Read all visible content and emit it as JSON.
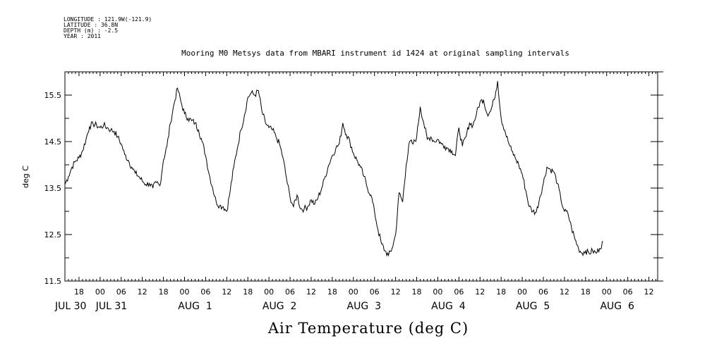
{
  "header": {
    "longitude": "LONGITUDE : 121.9W(-121.9)",
    "latitude": "LATITUDE : 36.8N",
    "depth": "DEPTH (m) : -2.5",
    "year": "YEAR : 2011"
  },
  "chart_data": {
    "type": "line",
    "title": "Mooring M0 Metsys data from MBARI instrument id 1424 at original sampling intervals",
    "xlabel": "Air Temperature (deg C)",
    "ylabel": "deg C",
    "ylim": [
      11.5,
      16.0
    ],
    "yticks": [
      "11.5",
      "12.5",
      "13.5",
      "14.5",
      "15.5"
    ],
    "xlim_hours_from_jul30_00": [
      14,
      182.5
    ],
    "hour_ticks": [
      "18",
      "00",
      "06",
      "12",
      "18",
      "00",
      "06",
      "12",
      "18",
      "00",
      "06",
      "12",
      "18",
      "00",
      "06",
      "12",
      "18",
      "00",
      "06",
      "12",
      "18",
      "00",
      "06",
      "12",
      "18",
      "00",
      "06",
      "12",
      "18",
      "00",
      "06",
      "12",
      "18",
      "00",
      "06",
      "12"
    ],
    "date_labels": [
      "JUL 30",
      "JUL 31",
      "AUG  1",
      "AUG  2",
      "AUG  3",
      "AUG  4",
      "AUG  5",
      "AUG  6"
    ],
    "series": [
      {
        "points": [
          [
            14,
            13.58
          ],
          [
            15,
            13.75
          ],
          [
            16,
            13.95
          ],
          [
            17,
            14.08
          ],
          [
            18,
            14.15
          ],
          [
            19,
            14.3
          ],
          [
            20,
            14.55
          ],
          [
            21,
            14.82
          ],
          [
            22,
            14.88
          ],
          [
            23,
            14.85
          ],
          [
            24,
            14.8
          ],
          [
            25,
            14.85
          ],
          [
            26,
            14.8
          ],
          [
            27,
            14.75
          ],
          [
            28,
            14.72
          ],
          [
            29,
            14.6
          ],
          [
            30,
            14.45
          ],
          [
            31,
            14.22
          ],
          [
            32,
            14.1
          ],
          [
            33,
            13.95
          ],
          [
            34,
            13.82
          ],
          [
            35,
            13.75
          ],
          [
            36,
            13.65
          ],
          [
            37,
            13.58
          ],
          [
            38,
            13.6
          ],
          [
            39,
            13.5
          ],
          [
            40,
            13.62
          ],
          [
            41,
            13.55
          ],
          [
            42,
            14.1
          ],
          [
            43,
            14.4
          ],
          [
            44,
            14.9
          ],
          [
            45,
            15.3
          ],
          [
            46,
            15.65
          ],
          [
            47,
            15.35
          ],
          [
            48,
            15.1
          ],
          [
            49,
            15.0
          ],
          [
            50,
            14.95
          ],
          [
            51,
            14.9
          ],
          [
            52,
            14.75
          ],
          [
            53,
            14.5
          ],
          [
            54,
            14.2
          ],
          [
            55,
            13.8
          ],
          [
            56,
            13.5
          ],
          [
            57,
            13.2
          ],
          [
            58,
            13.12
          ],
          [
            59,
            13.1
          ],
          [
            60,
            13.0
          ],
          [
            61,
            13.45
          ],
          [
            62,
            13.95
          ],
          [
            63,
            14.35
          ],
          [
            64,
            14.75
          ],
          [
            65,
            15.05
          ],
          [
            66,
            15.45
          ],
          [
            67,
            15.55
          ],
          [
            68,
            15.5
          ],
          [
            69,
            15.6
          ],
          [
            70,
            15.15
          ],
          [
            71,
            14.9
          ],
          [
            72,
            14.8
          ],
          [
            73,
            14.75
          ],
          [
            74,
            14.6
          ],
          [
            75,
            14.45
          ],
          [
            76,
            14.15
          ],
          [
            77,
            13.7
          ],
          [
            78,
            13.3
          ],
          [
            79,
            13.1
          ],
          [
            80,
            13.35
          ],
          [
            81,
            13.05
          ],
          [
            82,
            13.05
          ],
          [
            83,
            13.1
          ],
          [
            84,
            13.25
          ],
          [
            85,
            13.15
          ],
          [
            86,
            13.3
          ],
          [
            87,
            13.5
          ],
          [
            88,
            13.75
          ],
          [
            89,
            14.0
          ],
          [
            90,
            14.2
          ],
          [
            91,
            14.35
          ],
          [
            92,
            14.45
          ],
          [
            93,
            14.9
          ],
          [
            94,
            14.65
          ],
          [
            95,
            14.5
          ],
          [
            96,
            14.25
          ],
          [
            97,
            14.1
          ],
          [
            98,
            13.95
          ],
          [
            99,
            13.75
          ],
          [
            100,
            13.5
          ],
          [
            101,
            13.35
          ],
          [
            102,
            13.0
          ],
          [
            103,
            12.6
          ],
          [
            104,
            12.3
          ],
          [
            105,
            12.15
          ],
          [
            106,
            12.05
          ],
          [
            107,
            12.2
          ],
          [
            108,
            12.5
          ],
          [
            109,
            13.4
          ],
          [
            110,
            13.2
          ],
          [
            111,
            14.0
          ],
          [
            112,
            14.5
          ],
          [
            113,
            14.45
          ],
          [
            114,
            14.6
          ],
          [
            115,
            15.25
          ],
          [
            116,
            14.9
          ],
          [
            117,
            14.55
          ],
          [
            118,
            14.6
          ],
          [
            119,
            14.5
          ],
          [
            120,
            14.55
          ],
          [
            121,
            14.45
          ],
          [
            122,
            14.4
          ],
          [
            123,
            14.35
          ],
          [
            124,
            14.3
          ],
          [
            125,
            14.2
          ],
          [
            126,
            14.8
          ],
          [
            127,
            14.4
          ],
          [
            128,
            14.6
          ],
          [
            129,
            14.9
          ],
          [
            130,
            14.85
          ],
          [
            131,
            15.1
          ],
          [
            132,
            15.35
          ],
          [
            133,
            15.4
          ],
          [
            134,
            15.1
          ],
          [
            135,
            15.15
          ],
          [
            136,
            15.4
          ],
          [
            137,
            15.8
          ],
          [
            138,
            15.0
          ],
          [
            139,
            14.75
          ],
          [
            140,
            14.5
          ],
          [
            141,
            14.3
          ],
          [
            142,
            14.15
          ],
          [
            143,
            14.0
          ],
          [
            144,
            13.8
          ],
          [
            145,
            13.45
          ],
          [
            146,
            13.1
          ],
          [
            147,
            13.0
          ],
          [
            148,
            12.98
          ],
          [
            149,
            13.3
          ],
          [
            150,
            13.6
          ],
          [
            151,
            13.95
          ],
          [
            152,
            13.9
          ],
          [
            153,
            13.85
          ],
          [
            154,
            13.6
          ],
          [
            155,
            13.25
          ],
          [
            156,
            13.0
          ],
          [
            157,
            12.95
          ],
          [
            158,
            12.65
          ],
          [
            159,
            12.4
          ],
          [
            160,
            12.2
          ],
          [
            161,
            12.1
          ],
          [
            162,
            12.15
          ],
          [
            163,
            12.1
          ],
          [
            164,
            12.15
          ],
          [
            165,
            12.1
          ],
          [
            166,
            12.2
          ],
          [
            167,
            12.35
          ]
        ]
      }
    ],
    "grid": false,
    "legend": "none"
  }
}
